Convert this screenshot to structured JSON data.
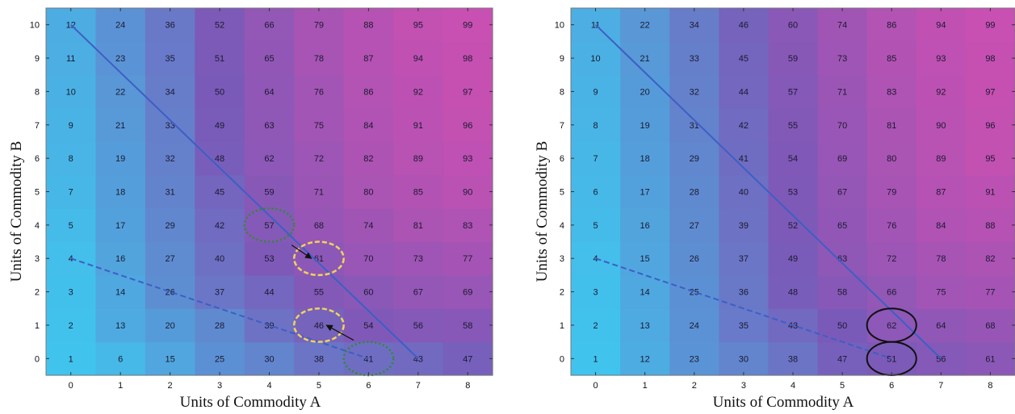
{
  "chart_data": [
    {
      "type": "heatmap",
      "xlabel": "Units of Commodity A",
      "ylabel": "Units of Commodity B",
      "x": [
        0,
        1,
        2,
        3,
        4,
        5,
        6,
        7,
        8
      ],
      "y": [
        0,
        1,
        2,
        3,
        4,
        5,
        6,
        7,
        8,
        9,
        10
      ],
      "xlim": [
        -0.5,
        8.5
      ],
      "ylim": [
        -0.5,
        10.5
      ],
      "values": [
        [
          1,
          6,
          15,
          25,
          30,
          38,
          41,
          43,
          47
        ],
        [
          2,
          13,
          20,
          28,
          39,
          46,
          54,
          56,
          58
        ],
        [
          3,
          14,
          26,
          37,
          44,
          55,
          60,
          67,
          69
        ],
        [
          4,
          16,
          27,
          40,
          53,
          61,
          70,
          73,
          77
        ],
        [
          5,
          17,
          29,
          42,
          57,
          68,
          74,
          81,
          83
        ],
        [
          7,
          18,
          31,
          45,
          59,
          71,
          80,
          85,
          90
        ],
        [
          8,
          19,
          32,
          48,
          62,
          72,
          82,
          89,
          93
        ],
        [
          9,
          21,
          33,
          49,
          63,
          75,
          84,
          91,
          96
        ],
        [
          10,
          22,
          34,
          50,
          64,
          76,
          86,
          92,
          97
        ],
        [
          11,
          23,
          35,
          51,
          65,
          78,
          87,
          94,
          98
        ],
        [
          12,
          24,
          36,
          52,
          66,
          79,
          88,
          95,
          99
        ]
      ],
      "lines": [
        {
          "style": "solid",
          "from": [
            0,
            10
          ],
          "to": [
            7,
            0
          ],
          "color": "#3d5fc4"
        },
        {
          "style": "dashed",
          "from": [
            0,
            3
          ],
          "to": [
            6,
            0
          ],
          "color": "#3d5fc4"
        }
      ],
      "markers": [
        {
          "shape": "ellipse",
          "at": [
            4,
            4
          ],
          "style": "dotted",
          "color": "#2e8b2e"
        },
        {
          "shape": "ellipse",
          "at": [
            6,
            0
          ],
          "style": "dotted",
          "color": "#2e8b2e"
        },
        {
          "shape": "ellipse",
          "at": [
            5,
            3
          ],
          "style": "dashed",
          "color": "#f2d25a"
        },
        {
          "shape": "ellipse",
          "at": [
            5,
            1
          ],
          "style": "dashed",
          "color": "#f2d25a"
        }
      ],
      "arrows": [
        {
          "from": [
            4.45,
            3.4
          ],
          "to": [
            4.85,
            3.0
          ],
          "color": "#111111"
        },
        {
          "from": [
            5.7,
            0.55
          ],
          "to": [
            5.15,
            1.0
          ],
          "color": "#111111"
        }
      ],
      "colors": {
        "low": "#40c4ee",
        "mid": "#7a5ab8",
        "high": "#c850b2"
      }
    },
    {
      "type": "heatmap",
      "xlabel": "Units of Commodity A",
      "ylabel": "Units of Commodity B",
      "x": [
        0,
        1,
        2,
        3,
        4,
        5,
        6,
        7,
        8
      ],
      "y": [
        0,
        1,
        2,
        3,
        4,
        5,
        6,
        7,
        8,
        9,
        10
      ],
      "xlim": [
        -0.5,
        8.5
      ],
      "ylim": [
        -0.5,
        10.5
      ],
      "values": [
        [
          1,
          12,
          23,
          30,
          38,
          47,
          51,
          56,
          61
        ],
        [
          2,
          13,
          24,
          35,
          43,
          50,
          62,
          64,
          68
        ],
        [
          3,
          14,
          25,
          36,
          48,
          58,
          66,
          75,
          77
        ],
        [
          4,
          15,
          26,
          37,
          49,
          63,
          72,
          78,
          82
        ],
        [
          5,
          16,
          27,
          39,
          52,
          65,
          76,
          84,
          88
        ],
        [
          6,
          17,
          28,
          40,
          53,
          67,
          79,
          87,
          91
        ],
        [
          7,
          18,
          29,
          41,
          54,
          69,
          80,
          89,
          95
        ],
        [
          8,
          19,
          31,
          42,
          55,
          70,
          81,
          90,
          96
        ],
        [
          9,
          20,
          32,
          44,
          57,
          71,
          83,
          92,
          97
        ],
        [
          10,
          21,
          33,
          45,
          59,
          73,
          85,
          93,
          98
        ],
        [
          11,
          22,
          34,
          46,
          60,
          74,
          86,
          94,
          99
        ]
      ],
      "lines": [
        {
          "style": "solid",
          "from": [
            0,
            10
          ],
          "to": [
            7,
            0
          ],
          "color": "#3d5fc4"
        },
        {
          "style": "dashed",
          "from": [
            0,
            3
          ],
          "to": [
            6,
            0
          ],
          "color": "#3d5fc4"
        }
      ],
      "markers": [
        {
          "shape": "ellipse",
          "at": [
            6,
            1
          ],
          "style": "solid",
          "color": "#111111"
        },
        {
          "shape": "ellipse",
          "at": [
            6,
            0
          ],
          "style": "solid",
          "color": "#111111"
        }
      ],
      "arrows": [],
      "colors": {
        "low": "#40c4ee",
        "mid": "#7a5ab8",
        "high": "#c850b2"
      }
    }
  ]
}
